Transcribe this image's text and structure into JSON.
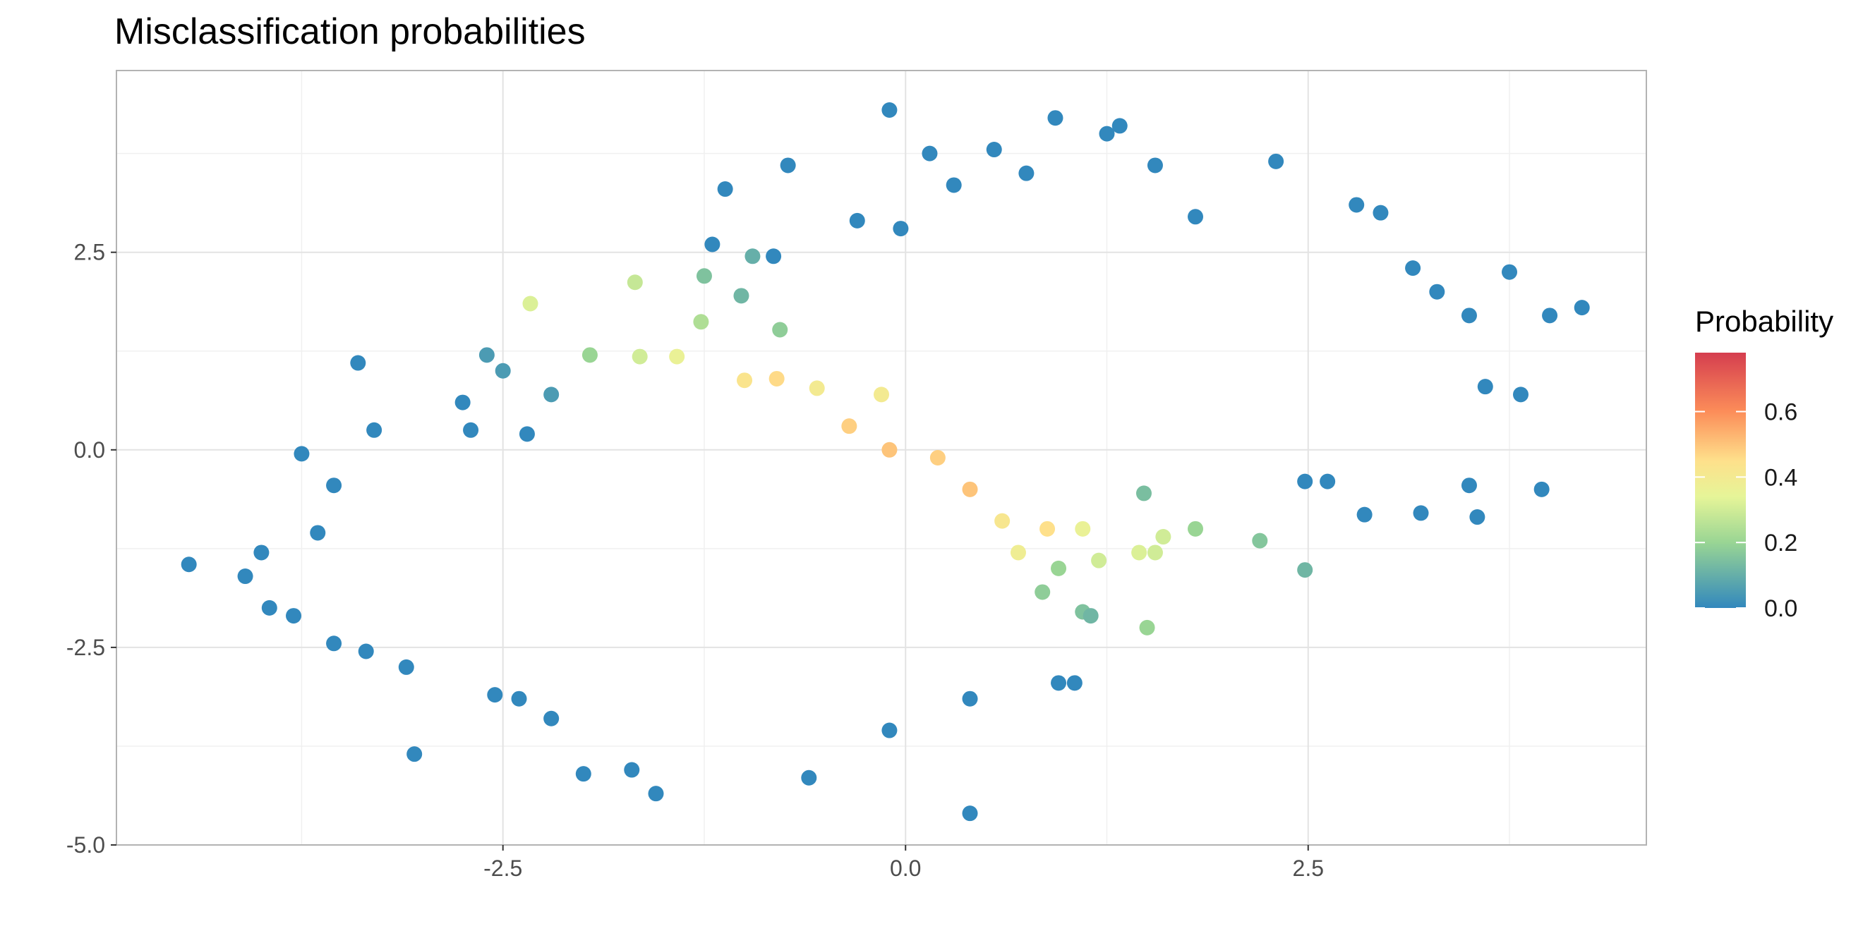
{
  "chart_data": {
    "type": "scatter",
    "title": "Misclassification probabilities",
    "xlabel": "",
    "ylabel": "",
    "xlim": [
      -4.9,
      4.6
    ],
    "ylim": [
      -5.0,
      4.8
    ],
    "x_ticks": [
      -2.5,
      0.0,
      2.5
    ],
    "x_tick_labels": [
      "-2.5",
      "0.0",
      "2.5"
    ],
    "y_ticks": [
      -5.0,
      -2.5,
      0.0,
      2.5
    ],
    "y_tick_labels": [
      "-5.0",
      "-2.5",
      "0.0",
      "2.5"
    ],
    "grid": true,
    "legend": {
      "title": "Probability",
      "position": "right",
      "range": [
        0.0,
        0.78
      ],
      "ticks": [
        0.0,
        0.2,
        0.4,
        0.6
      ],
      "tick_labels": [
        "0.0",
        "0.2",
        "0.4",
        "0.6"
      ],
      "colors": [
        "#3288bd",
        "#99d594",
        "#e6f598",
        "#fee08b",
        "#fc8d59",
        "#d53e4f"
      ]
    },
    "series": [
      {
        "color_by": "probability",
        "points": [
          {
            "x": -0.1,
            "y": 4.3,
            "p": 0.0
          },
          {
            "x": 0.93,
            "y": 4.2,
            "p": 0.0
          },
          {
            "x": 1.33,
            "y": 4.1,
            "p": 0.0
          },
          {
            "x": 1.25,
            "y": 4.0,
            "p": 0.0
          },
          {
            "x": 0.55,
            "y": 3.8,
            "p": 0.0
          },
          {
            "x": 0.15,
            "y": 3.75,
            "p": 0.0
          },
          {
            "x": -0.73,
            "y": 3.6,
            "p": 0.0
          },
          {
            "x": 1.55,
            "y": 3.6,
            "p": 0.0
          },
          {
            "x": 2.3,
            "y": 3.65,
            "p": 0.0
          },
          {
            "x": 0.75,
            "y": 3.5,
            "p": 0.0
          },
          {
            "x": -1.12,
            "y": 3.3,
            "p": 0.0
          },
          {
            "x": 0.3,
            "y": 3.35,
            "p": 0.0
          },
          {
            "x": 2.8,
            "y": 3.1,
            "p": 0.0
          },
          {
            "x": 2.95,
            "y": 3.0,
            "p": 0.0
          },
          {
            "x": -0.3,
            "y": 2.9,
            "p": 0.0
          },
          {
            "x": -0.03,
            "y": 2.8,
            "p": 0.0
          },
          {
            "x": 1.8,
            "y": 2.95,
            "p": 0.0
          },
          {
            "x": -1.2,
            "y": 2.6,
            "p": 0.0
          },
          {
            "x": -0.95,
            "y": 2.45,
            "p": 0.1
          },
          {
            "x": -1.25,
            "y": 2.2,
            "p": 0.15
          },
          {
            "x": -0.82,
            "y": 2.45,
            "p": 0.0
          },
          {
            "x": -1.68,
            "y": 2.12,
            "p": 0.28
          },
          {
            "x": -2.33,
            "y": 1.85,
            "p": 0.32
          },
          {
            "x": -1.27,
            "y": 1.62,
            "p": 0.24
          },
          {
            "x": -1.02,
            "y": 1.95,
            "p": 0.12
          },
          {
            "x": -0.78,
            "y": 1.52,
            "p": 0.18
          },
          {
            "x": 3.75,
            "y": 2.25,
            "p": 0.0
          },
          {
            "x": 3.15,
            "y": 2.3,
            "p": 0.0
          },
          {
            "x": 4.2,
            "y": 1.8,
            "p": 0.0
          },
          {
            "x": 4.0,
            "y": 1.7,
            "p": 0.0
          },
          {
            "x": 3.5,
            "y": 1.7,
            "p": 0.0
          },
          {
            "x": 3.3,
            "y": 2.0,
            "p": 0.0
          },
          {
            "x": -3.4,
            "y": 1.1,
            "p": 0.0
          },
          {
            "x": -2.6,
            "y": 1.2,
            "p": 0.05
          },
          {
            "x": -2.5,
            "y": 1.0,
            "p": 0.05
          },
          {
            "x": -1.96,
            "y": 1.2,
            "p": 0.2
          },
          {
            "x": -1.65,
            "y": 1.18,
            "p": 0.3
          },
          {
            "x": -1.42,
            "y": 1.18,
            "p": 0.36
          },
          {
            "x": -1.0,
            "y": 0.88,
            "p": 0.43
          },
          {
            "x": -0.8,
            "y": 0.9,
            "p": 0.46
          },
          {
            "x": -0.55,
            "y": 0.78,
            "p": 0.4
          },
          {
            "x": -0.15,
            "y": 0.7,
            "p": 0.4
          },
          {
            "x": -0.35,
            "y": 0.3,
            "p": 0.48
          },
          {
            "x": -0.1,
            "y": 0.0,
            "p": 0.5
          },
          {
            "x": 0.2,
            "y": -0.1,
            "p": 0.48
          },
          {
            "x": 0.4,
            "y": -0.5,
            "p": 0.5
          },
          {
            "x": 0.6,
            "y": -0.9,
            "p": 0.42
          },
          {
            "x": 0.88,
            "y": -1.0,
            "p": 0.45
          },
          {
            "x": 0.7,
            "y": -1.3,
            "p": 0.38
          },
          {
            "x": 1.1,
            "y": -1.0,
            "p": 0.36
          },
          {
            "x": 1.45,
            "y": -1.3,
            "p": 0.32
          },
          {
            "x": 1.6,
            "y": -1.1,
            "p": 0.3
          },
          {
            "x": 1.55,
            "y": -1.3,
            "p": 0.3
          },
          {
            "x": 1.2,
            "y": -1.4,
            "p": 0.3
          },
          {
            "x": 0.95,
            "y": -1.5,
            "p": 0.2
          },
          {
            "x": 0.85,
            "y": -1.8,
            "p": 0.18
          },
          {
            "x": 1.1,
            "y": -2.05,
            "p": 0.15
          },
          {
            "x": 1.15,
            "y": -2.1,
            "p": 0.12
          },
          {
            "x": 1.5,
            "y": -2.25,
            "p": 0.2
          },
          {
            "x": 2.2,
            "y": -1.15,
            "p": 0.16
          },
          {
            "x": 2.48,
            "y": -1.52,
            "p": 0.12
          },
          {
            "x": 1.8,
            "y": -1.0,
            "p": 0.2
          },
          {
            "x": 1.48,
            "y": -0.55,
            "p": 0.14
          },
          {
            "x": 2.48,
            "y": -0.4,
            "p": 0.0
          },
          {
            "x": 2.62,
            "y": -0.4,
            "p": 0.0
          },
          {
            "x": 2.85,
            "y": -0.82,
            "p": 0.0
          },
          {
            "x": 3.2,
            "y": -0.8,
            "p": 0.0
          },
          {
            "x": 3.5,
            "y": -0.45,
            "p": 0.0
          },
          {
            "x": 3.55,
            "y": -0.85,
            "p": 0.0
          },
          {
            "x": 3.95,
            "y": -0.5,
            "p": 0.0
          },
          {
            "x": 3.82,
            "y": 0.7,
            "p": 0.0
          },
          {
            "x": 3.6,
            "y": 0.8,
            "p": 0.0
          },
          {
            "x": -4.45,
            "y": -1.45,
            "p": 0.0
          },
          {
            "x": -4.1,
            "y": -1.6,
            "p": 0.0
          },
          {
            "x": -4.0,
            "y": -1.3,
            "p": 0.0
          },
          {
            "x": -3.95,
            "y": -2.0,
            "p": 0.0
          },
          {
            "x": -3.8,
            "y": -2.1,
            "p": 0.0
          },
          {
            "x": -3.75,
            "y": -0.05,
            "p": 0.0
          },
          {
            "x": -3.65,
            "y": -1.05,
            "p": 0.0
          },
          {
            "x": -3.55,
            "y": -0.45,
            "p": 0.0
          },
          {
            "x": -3.55,
            "y": -2.45,
            "p": 0.0
          },
          {
            "x": -3.35,
            "y": -2.55,
            "p": 0.0
          },
          {
            "x": -3.1,
            "y": -2.75,
            "p": 0.0
          },
          {
            "x": -3.05,
            "y": -3.85,
            "p": 0.0
          },
          {
            "x": -2.55,
            "y": -3.1,
            "p": 0.0
          },
          {
            "x": -2.4,
            "y": -3.15,
            "p": 0.0
          },
          {
            "x": -2.2,
            "y": -3.4,
            "p": 0.0
          },
          {
            "x": -2.0,
            "y": -4.1,
            "p": 0.0
          },
          {
            "x": -1.7,
            "y": -4.05,
            "p": 0.0
          },
          {
            "x": -1.55,
            "y": -4.35,
            "p": 0.0
          },
          {
            "x": -0.6,
            "y": -4.15,
            "p": 0.0
          },
          {
            "x": 0.4,
            "y": -4.6,
            "p": 0.0
          },
          {
            "x": -0.1,
            "y": -3.55,
            "p": 0.0
          },
          {
            "x": 0.95,
            "y": -2.95,
            "p": 0.0
          },
          {
            "x": 1.05,
            "y": -2.95,
            "p": 0.0
          },
          {
            "x": 0.4,
            "y": -3.15,
            "p": 0.0
          },
          {
            "x": -3.3,
            "y": 0.25,
            "p": 0.0
          },
          {
            "x": -2.75,
            "y": 0.6,
            "p": 0.0
          },
          {
            "x": -2.7,
            "y": 0.25,
            "p": 0.0
          },
          {
            "x": -2.35,
            "y": 0.2,
            "p": 0.0
          },
          {
            "x": -2.2,
            "y": 0.7,
            "p": 0.05
          }
        ]
      }
    ]
  }
}
